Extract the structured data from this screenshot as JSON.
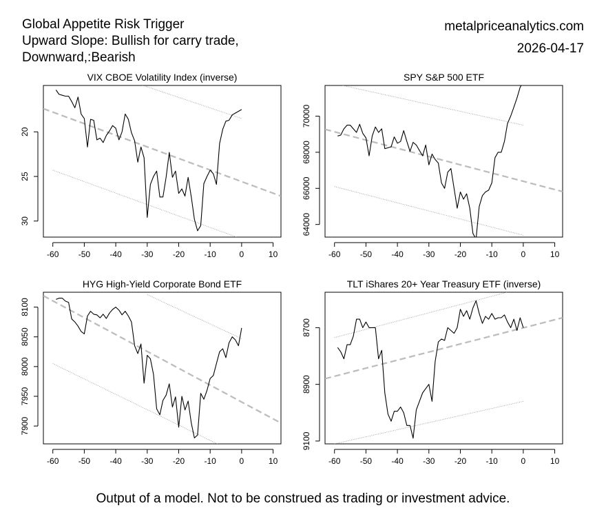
{
  "header": {
    "title_lines": [
      "Global Appetite Risk Trigger",
      "Upward Slope: Bullish for carry trade,",
      "Downward,:Bearish"
    ],
    "site": "metalpriceanalytics.com",
    "date": "2026-04-17"
  },
  "footer": "Output of a model. Not to be construed as trading or investment advice.",
  "chart_data": [
    {
      "type": "line",
      "title": "VIX CBOE Volatility Index (inverse)",
      "inverted": true,
      "xlim": [
        -63,
        12.5
      ],
      "ylim": [
        31.8,
        14.8
      ],
      "xticks": [
        -60,
        -50,
        -40,
        -30,
        -20,
        -10,
        0,
        10
      ],
      "yticks": [
        20,
        25,
        30
      ],
      "x": [
        -59,
        -58,
        -57,
        -56,
        -55,
        -54,
        -53,
        -52,
        -51,
        -50,
        -49,
        -48,
        -47,
        -46,
        -45,
        -44,
        -43,
        -42,
        -41,
        -40,
        -39,
        -38,
        -37,
        -36,
        -35,
        -34,
        -33,
        -32,
        -31,
        -30,
        -29,
        -28,
        -27,
        -26,
        -25,
        -24,
        -23,
        -22,
        -21,
        -20,
        -19,
        -18,
        -17,
        -16,
        -15,
        -14,
        -13,
        -12,
        -11,
        -10,
        -9,
        -8,
        -7,
        -6,
        -5,
        -4,
        -3,
        -2,
        -1,
        0
      ],
      "values": [
        15.3,
        15.8,
        15.9,
        16.0,
        16.0,
        16.6,
        17.3,
        16.1,
        18.0,
        18.5,
        21.7,
        18.6,
        18.7,
        20.9,
        20.7,
        21.2,
        20.4,
        19.9,
        19.3,
        19.6,
        20.9,
        20.0,
        18.0,
        18.6,
        20.1,
        21.0,
        23.4,
        21.7,
        22.9,
        29.6,
        25.9,
        25.0,
        24.4,
        27.3,
        27.3,
        25.1,
        22.3,
        25.1,
        24.4,
        26.9,
        26.4,
        27.2,
        25.1,
        27.3,
        29.8,
        31.1,
        30.5,
        25.8,
        25.0,
        24.3,
        24.7,
        25.9,
        21.3,
        19.7,
        18.8,
        18.7,
        18.1,
        17.9,
        17.7,
        17.5
      ],
      "trend": {
        "x": [
          -63,
          12.5
        ],
        "y": [
          17.4,
          27.2
        ]
      },
      "band_upper": {
        "x": [
          -60,
          0
        ],
        "y": [
          11.4,
          18.5
        ]
      },
      "band_lower": {
        "x": [
          -60,
          0
        ],
        "y": [
          24.3,
          32.0
        ]
      }
    },
    {
      "type": "line",
      "title": "SPY S&P 500 ETF",
      "inverted": false,
      "xlim": [
        -63,
        12.5
      ],
      "ylim": [
        63300,
        71700
      ],
      "xticks": [
        -60,
        -50,
        -40,
        -30,
        -20,
        -10,
        0,
        10
      ],
      "yticks": [
        64000,
        66000,
        68000,
        70000
      ],
      "x": [
        -59,
        -58,
        -57,
        -56,
        -55,
        -54,
        -53,
        -52,
        -51,
        -50,
        -49,
        -48,
        -47,
        -46,
        -45,
        -44,
        -43,
        -42,
        -41,
        -40,
        -39,
        -38,
        -37,
        -36,
        -35,
        -34,
        -33,
        -32,
        -31,
        -30,
        -29,
        -28,
        -27,
        -26,
        -25,
        -24,
        -23,
        -22,
        -21,
        -20,
        -19,
        -18,
        -17,
        -16,
        -15,
        -14,
        -13,
        -12,
        -11,
        -10,
        -9,
        -8,
        -7,
        -6,
        -5,
        -4,
        -3,
        -2,
        -1,
        0
      ],
      "values": [
        68900,
        68950,
        69300,
        69500,
        69500,
        69300,
        69100,
        69550,
        69050,
        68800,
        67800,
        68900,
        69400,
        69100,
        69300,
        68200,
        68250,
        68300,
        68850,
        68500,
        68600,
        69200,
        68600,
        68050,
        68550,
        68400,
        68100,
        67800,
        68400,
        67300,
        67900,
        67600,
        67400,
        66300,
        66000,
        66900,
        67100,
        66000,
        64900,
        65800,
        65400,
        65700,
        64900,
        63500,
        63200,
        65000,
        65600,
        65800,
        65900,
        66300,
        67700,
        68000,
        68000,
        68600,
        69600,
        70000,
        70500,
        71000,
        71600,
        71900
      ],
      "trend": {
        "x": [
          -63,
          12.5
        ],
        "y": [
          69270,
          65820
        ]
      },
      "band_upper": {
        "x": [
          -60,
          0
        ],
        "y": [
          71800,
          69500
        ]
      },
      "band_lower": {
        "x": [
          -60,
          0
        ],
        "y": [
          66100,
          63400
        ]
      }
    },
    {
      "type": "line",
      "title": "HYG High-Yield Corporate Bond ETF",
      "inverted": false,
      "xlim": [
        -63,
        12.5
      ],
      "ylim": [
        7870,
        8125
      ],
      "xticks": [
        -60,
        -50,
        -40,
        -30,
        -20,
        -10,
        0,
        10
      ],
      "yticks": [
        7900,
        7950,
        8000,
        8050,
        8100
      ],
      "x": [
        -59,
        -58,
        -57,
        -56,
        -55,
        -54,
        -53,
        -52,
        -51,
        -50,
        -49,
        -48,
        -47,
        -46,
        -45,
        -44,
        -43,
        -42,
        -41,
        -40,
        -39,
        -38,
        -37,
        -36,
        -35,
        -34,
        -33,
        -32,
        -31,
        -30,
        -29,
        -28,
        -27,
        -26,
        -25,
        -24,
        -23,
        -22,
        -21,
        -20,
        -19,
        -18,
        -17,
        -16,
        -15,
        -14,
        -13,
        -12,
        -11,
        -10,
        -9,
        -8,
        -7,
        -6,
        -5,
        -4,
        -3,
        -2,
        -1,
        0
      ],
      "values": [
        8113,
        8115,
        8115,
        8110,
        8108,
        8080,
        8075,
        8068,
        8059,
        8055,
        8085,
        8093,
        8088,
        8087,
        8082,
        8088,
        8081,
        8090,
        8096,
        8100,
        8095,
        8087,
        8093,
        8085,
        8075,
        8035,
        8022,
        8038,
        7972,
        8019,
        8013,
        7987,
        7929,
        7919,
        7943,
        7952,
        7971,
        7932,
        7949,
        7898,
        7950,
        7927,
        7942,
        7905,
        7880,
        7885,
        7955,
        7945,
        7960,
        7980,
        7985,
        8005,
        8025,
        8030,
        8015,
        8040,
        8050,
        8045,
        8035,
        8065
      ],
      "trend": {
        "x": [
          -63,
          12.5
        ],
        "y": [
          8119,
          7905
        ]
      },
      "band_upper": {
        "x": [
          -30,
          0
        ],
        "y": [
          8121,
          8047
        ]
      },
      "band_lower": {
        "x": [
          -60,
          0
        ],
        "y": [
          8005,
          7850
        ]
      }
    },
    {
      "type": "line",
      "title": "TLT iShares 20+ Year Treasury ETF (inverse)",
      "inverted": true,
      "xlim": [
        -63,
        12.5
      ],
      "ylim": [
        9110,
        8575
      ],
      "xticks": [
        -60,
        -50,
        -40,
        -30,
        -20,
        -10,
        0,
        10
      ],
      "yticks": [
        8700,
        8900,
        9100
      ],
      "x": [
        -59,
        -58,
        -57,
        -56,
        -55,
        -54,
        -53,
        -52,
        -51,
        -50,
        -49,
        -48,
        -47,
        -46,
        -45,
        -44,
        -43,
        -42,
        -41,
        -40,
        -39,
        -38,
        -37,
        -36,
        -35,
        -34,
        -33,
        -32,
        -31,
        -30,
        -29,
        -28,
        -27,
        -26,
        -25,
        -24,
        -23,
        -22,
        -21,
        -20,
        -19,
        -18,
        -17,
        -16,
        -15,
        -14,
        -13,
        -12,
        -11,
        -10,
        -9,
        -8,
        -7,
        -6,
        -5,
        -4,
        -3,
        -2,
        -1,
        0
      ],
      "values": [
        8770,
        8785,
        8810,
        8760,
        8760,
        8730,
        8670,
        8670,
        8700,
        8680,
        8700,
        8700,
        8700,
        8810,
        8780,
        8930,
        9005,
        9030,
        8995,
        8995,
        8980,
        9000,
        9045,
        9045,
        9090,
        8990,
        8960,
        8930,
        8915,
        8900,
        8960,
        8820,
        8750,
        8740,
        8745,
        8700,
        8710,
        8720,
        8700,
        8635,
        8660,
        8640,
        8670,
        8630,
        8605,
        8650,
        8685,
        8660,
        8670,
        8650,
        8670,
        8665,
        8665,
        8655,
        8680,
        8700,
        8670,
        8710,
        8665,
        8700
      ],
      "trend": {
        "x": [
          -63,
          12.5
        ],
        "y": [
          8880,
          8665
        ]
      },
      "band_upper": {
        "x": [
          -60,
          0
        ],
        "y": [
          8735,
          8560
        ]
      },
      "band_lower": {
        "x": [
          -60,
          0
        ],
        "y": [
          9110,
          8960
        ]
      }
    }
  ]
}
